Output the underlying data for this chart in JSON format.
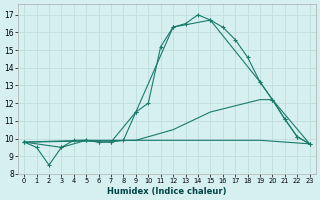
{
  "xlabel": "Humidex (Indice chaleur)",
  "bg_color": "#d6f0f0",
  "grid_color": "#c0dede",
  "line_color": "#1a7a6a",
  "xlim": [
    -0.5,
    23.5
  ],
  "ylim": [
    8.0,
    17.6
  ],
  "yticks": [
    8,
    9,
    10,
    11,
    12,
    13,
    14,
    15,
    16,
    17
  ],
  "xticks": [
    0,
    1,
    2,
    3,
    4,
    5,
    6,
    7,
    8,
    9,
    10,
    11,
    12,
    13,
    14,
    15,
    16,
    17,
    18,
    19,
    20,
    21,
    22,
    23
  ],
  "line1_x": [
    0,
    1,
    2,
    3,
    4,
    5,
    6,
    7,
    8,
    9,
    10,
    11,
    12,
    13,
    14,
    15,
    16,
    17,
    18,
    19,
    20,
    21,
    22,
    23
  ],
  "line1_y": [
    9.8,
    9.5,
    8.5,
    9.5,
    9.9,
    9.9,
    9.8,
    9.8,
    9.9,
    11.5,
    12.0,
    15.2,
    16.3,
    16.5,
    17.0,
    16.7,
    16.3,
    15.6,
    14.6,
    13.2,
    12.2,
    11.1,
    10.1,
    9.7
  ],
  "line2_x": [
    0,
    3,
    5,
    6,
    7,
    9,
    12,
    15,
    19,
    20,
    21,
    22,
    23
  ],
  "line2_y": [
    9.8,
    9.5,
    9.9,
    9.8,
    9.8,
    11.5,
    16.3,
    16.7,
    13.2,
    12.2,
    11.1,
    10.1,
    9.7
  ],
  "line3_x": [
    0,
    5,
    9,
    12,
    15,
    19,
    20,
    23
  ],
  "line3_y": [
    9.8,
    9.9,
    9.9,
    10.5,
    11.5,
    12.2,
    12.2,
    9.7
  ],
  "line4_x": [
    0,
    9,
    19,
    23
  ],
  "line4_y": [
    9.8,
    9.9,
    9.9,
    9.7
  ]
}
